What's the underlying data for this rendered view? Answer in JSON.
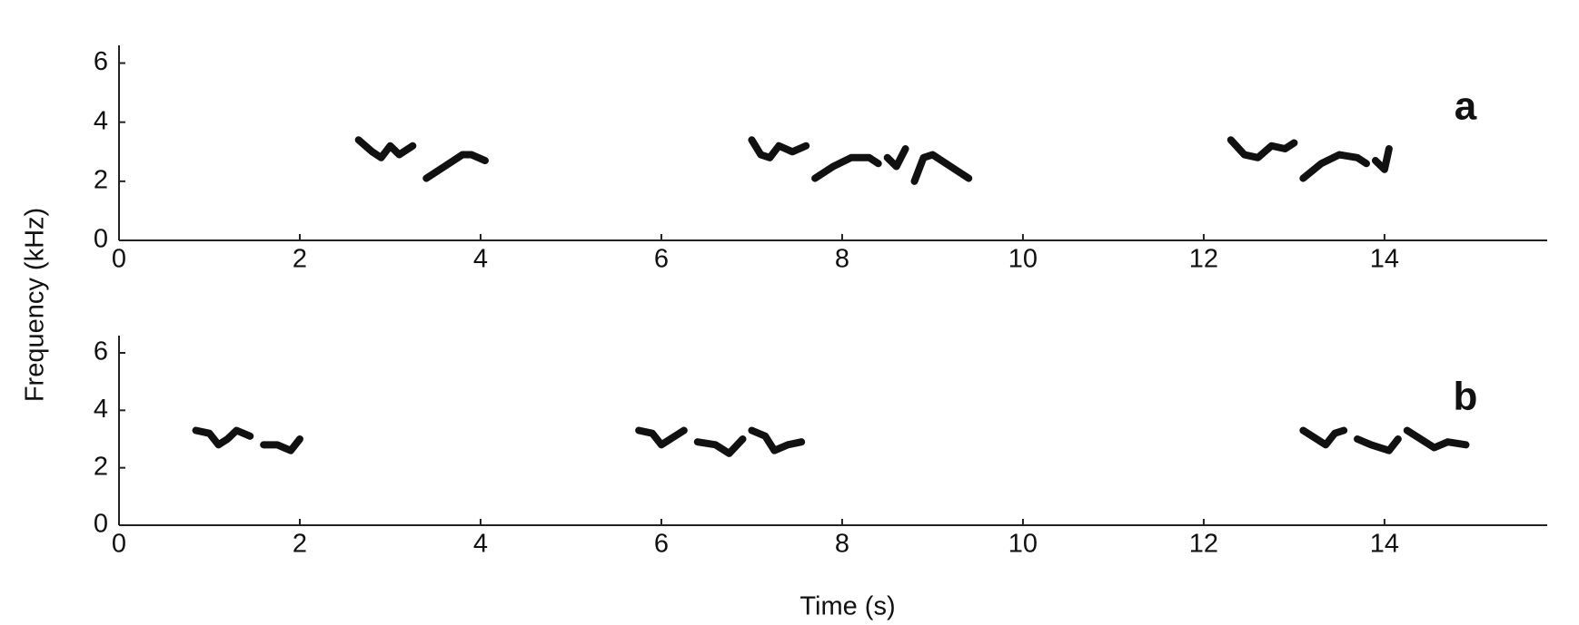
{
  "ylabel": "Frequency (kHz)",
  "xlabel": "Time (s)",
  "chart_data": [
    {
      "type": "line",
      "label": "a",
      "color": "#111111",
      "xlim": [
        0,
        15.8
      ],
      "ylim": [
        0,
        6.6
      ],
      "xticks": [
        0,
        2,
        4,
        6,
        8,
        10,
        12,
        14
      ],
      "yticks": [
        0,
        2,
        4,
        6
      ],
      "series": [
        {
          "x": [
            2.65,
            2.8,
            2.9,
            3.0,
            3.1,
            3.25
          ],
          "values": [
            3.4,
            3.0,
            2.8,
            3.2,
            2.9,
            3.2
          ]
        },
        {
          "x": [
            3.4,
            3.6,
            3.8,
            3.9,
            4.05
          ],
          "values": [
            2.1,
            2.5,
            2.9,
            2.9,
            2.7
          ]
        },
        {
          "x": [
            7.0,
            7.1,
            7.2,
            7.3,
            7.45,
            7.6
          ],
          "values": [
            3.4,
            2.9,
            2.8,
            3.2,
            3.0,
            3.2
          ]
        },
        {
          "x": [
            7.7,
            7.9,
            8.1,
            8.3,
            8.4
          ],
          "values": [
            2.1,
            2.5,
            2.8,
            2.8,
            2.6
          ]
        },
        {
          "x": [
            8.5,
            8.6,
            8.7
          ],
          "values": [
            2.8,
            2.5,
            3.1
          ]
        },
        {
          "x": [
            8.8,
            8.9,
            9.0,
            9.2,
            9.4
          ],
          "values": [
            2.0,
            2.8,
            2.9,
            2.5,
            2.1
          ]
        },
        {
          "x": [
            12.3,
            12.45,
            12.6,
            12.75,
            12.9,
            13.0
          ],
          "values": [
            3.4,
            2.9,
            2.8,
            3.2,
            3.1,
            3.3
          ]
        },
        {
          "x": [
            13.1,
            13.3,
            13.5,
            13.7,
            13.8
          ],
          "values": [
            2.1,
            2.6,
            2.9,
            2.8,
            2.6
          ]
        },
        {
          "x": [
            13.9,
            14.0,
            14.05
          ],
          "values": [
            2.7,
            2.4,
            3.1
          ]
        }
      ]
    },
    {
      "type": "line",
      "label": "b",
      "color": "#111111",
      "xlim": [
        0,
        15.8
      ],
      "ylim": [
        0,
        6.6
      ],
      "xticks": [
        0,
        2,
        4,
        6,
        8,
        10,
        12,
        14
      ],
      "yticks": [
        0,
        2,
        4,
        6
      ],
      "series": [
        {
          "x": [
            0.85,
            1.0,
            1.1,
            1.2,
            1.3,
            1.45
          ],
          "values": [
            3.3,
            3.2,
            2.8,
            3.0,
            3.3,
            3.1
          ]
        },
        {
          "x": [
            1.6,
            1.75,
            1.9,
            2.0
          ],
          "values": [
            2.8,
            2.8,
            2.6,
            3.0
          ]
        },
        {
          "x": [
            5.75,
            5.9,
            6.0,
            6.1,
            6.25
          ],
          "values": [
            3.3,
            3.2,
            2.8,
            3.0,
            3.3
          ]
        },
        {
          "x": [
            6.4,
            6.6,
            6.75,
            6.9
          ],
          "values": [
            2.9,
            2.8,
            2.5,
            3.0
          ]
        },
        {
          "x": [
            7.0,
            7.15,
            7.25,
            7.4,
            7.55
          ],
          "values": [
            3.3,
            3.1,
            2.6,
            2.8,
            2.9
          ]
        },
        {
          "x": [
            13.1,
            13.25,
            13.35,
            13.45,
            13.55
          ],
          "values": [
            3.3,
            3.0,
            2.8,
            3.2,
            3.3
          ]
        },
        {
          "x": [
            13.7,
            13.85,
            14.05,
            14.15
          ],
          "values": [
            3.0,
            2.8,
            2.6,
            3.0
          ]
        },
        {
          "x": [
            14.25,
            14.4,
            14.55,
            14.7,
            14.9
          ],
          "values": [
            3.3,
            3.0,
            2.7,
            2.9,
            2.8
          ]
        }
      ]
    }
  ]
}
